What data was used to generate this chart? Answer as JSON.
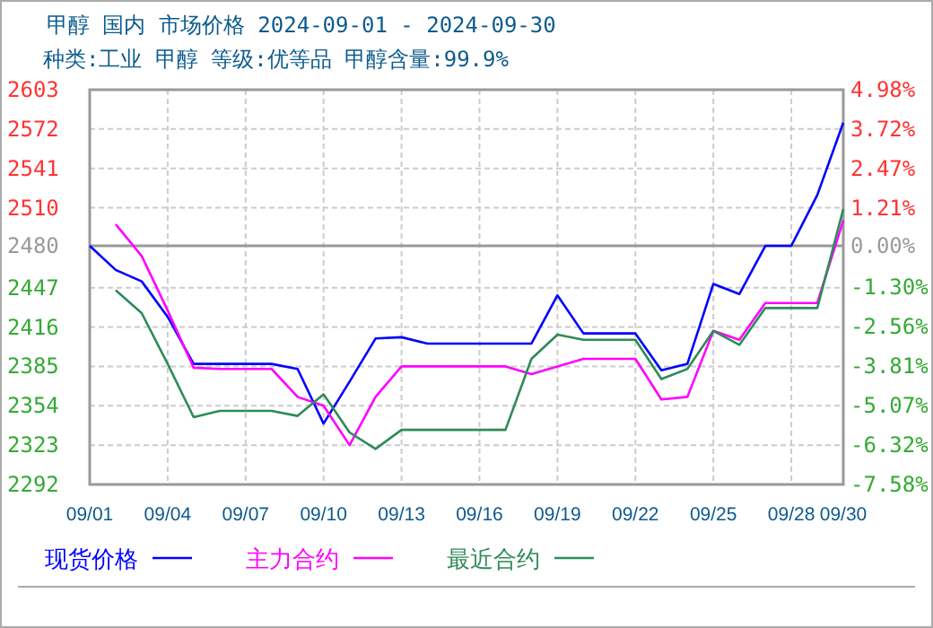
{
  "chart_data": {
    "type": "line",
    "title": "甲醇 国内 市场价格 2024-09-01 - 2024-09-30",
    "subtitle": "种类:工业 甲醇 等级:优等品 甲醇含量:99.9%",
    "x": [
      "--09-01",
      "--09-02",
      "--09-03",
      "--09-04",
      "--09-05",
      "--09-06",
      "--09-07",
      "--09-08",
      "--09-09",
      "--09-10",
      "--09-11",
      "--09-12",
      "--09-13",
      "--09-14",
      "--09-15",
      "--09-16",
      "--09-17",
      "--09-18",
      "--09-19",
      "--09-20",
      "--09-21",
      "--09-22",
      "--09-23",
      "--09-24",
      "--09-25",
      "--09-26",
      "--09-27",
      "--09-28",
      "--09-29",
      "--09-30"
    ],
    "series": [
      {
        "name": "现货价格",
        "color": "#0000ff",
        "values": [
          2480,
          2461,
          2452,
          2424,
          2387,
          2387,
          2387,
          2387,
          2383,
          2340,
          2373,
          2407,
          2408,
          2403,
          2403,
          2403,
          2403,
          2403,
          2441,
          2411,
          2411,
          2411,
          2382,
          2387,
          2450,
          2442,
          2480,
          2480,
          2520,
          2577
        ]
      },
      {
        "name": "主力合约",
        "color": "#ff00ff",
        "values": [
          null,
          2497,
          2472,
          2429,
          2384,
          2383,
          2383,
          2383,
          2361,
          2354,
          2323,
          2361,
          2385,
          2385,
          2385,
          2385,
          2385,
          2379,
          2385,
          2391,
          2391,
          2391,
          2359,
          2361,
          2413,
          2406,
          2435,
          2435,
          2435,
          2500
        ]
      },
      {
        "name": "最近合约",
        "color": "#2e8b57",
        "values": [
          null,
          2445,
          2427,
          2387,
          2345,
          2350,
          2350,
          2350,
          2346,
          2363,
          2333,
          2320,
          2335,
          2335,
          2335,
          2335,
          2335,
          2391,
          2410,
          2406,
          2406,
          2406,
          2375,
          2383,
          2413,
          2402,
          2431,
          2431,
          2431,
          2509
        ]
      }
    ],
    "xlim": [
      "--09-01",
      "--09-30"
    ],
    "xticks": [
      {
        "value": "--09-01",
        "label": "09/01"
      },
      {
        "value": "--09-04",
        "label": "09/04"
      },
      {
        "value": "--09-07",
        "label": "09/07"
      },
      {
        "value": "--09-10",
        "label": "09/10"
      },
      {
        "value": "--09-13",
        "label": "09/13"
      },
      {
        "value": "--09-16",
        "label": "09/16"
      },
      {
        "value": "--09-19",
        "label": "09/19"
      },
      {
        "value": "--09-22",
        "label": "09/22"
      },
      {
        "value": "--09-25",
        "label": "09/25"
      },
      {
        "value": "--09-28",
        "label": "09/28"
      },
      {
        "value": "--09-30",
        "label": "09/30"
      }
    ],
    "ylim": [
      2292,
      2603
    ],
    "yticks": [
      2292,
      2323,
      2354,
      2385,
      2416,
      2447,
      2480,
      2510,
      2541,
      2572,
      2603
    ],
    "y2lim": [
      -7.58,
      4.98
    ],
    "y2ticks": [
      {
        "value": -7.58,
        "label": "-7.58%"
      },
      {
        "value": -6.32,
        "label": "-6.32%"
      },
      {
        "value": -5.07,
        "label": "-5.07%"
      },
      {
        "value": -3.81,
        "label": "-3.81%"
      },
      {
        "value": -2.56,
        "label": "-2.56%"
      },
      {
        "value": -1.3,
        "label": "-1.30%"
      },
      {
        "value": 0,
        "label": "0.00%"
      },
      {
        "value": 1.21,
        "label": "1.21%"
      },
      {
        "value": 2.47,
        "label": "2.47%"
      },
      {
        "value": 3.72,
        "label": "3.72%"
      },
      {
        "value": 4.98,
        "label": "4.98%"
      }
    ],
    "ref_lines": [
      {
        "axis": "y",
        "value": 2480,
        "color": "#999999"
      }
    ],
    "grid": true,
    "legend": "bottom",
    "marker": "none",
    "line_style": "solid"
  }
}
